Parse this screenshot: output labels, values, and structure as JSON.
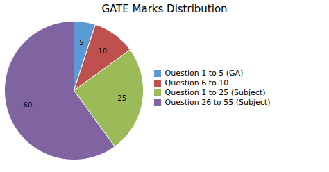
{
  "chart_data": {
    "type": "pie",
    "title": "GATE Marks Distribution",
    "categories": [
      "Question 1 to 5 (GA)",
      "Question 6 to 10",
      "Question 1 to 25 (Subject)",
      "Question 26 to 55 (Subject)"
    ],
    "values": [
      5,
      10,
      25,
      60
    ],
    "colors": [
      "#5B9BD5",
      "#C0504D",
      "#9BBB59",
      "#8064A2"
    ],
    "data_labels": true,
    "legend": "right"
  }
}
